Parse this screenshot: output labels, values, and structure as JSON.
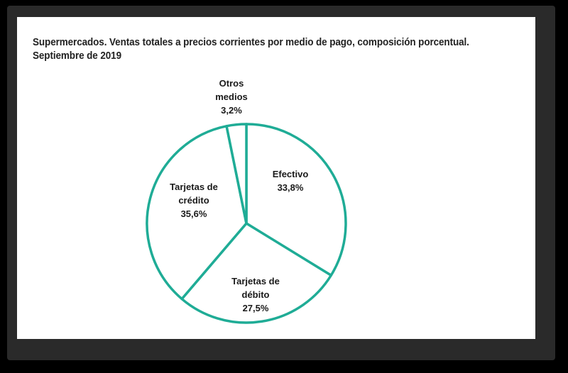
{
  "chart_data": {
    "type": "pie",
    "title": "Supermercados. Ventas totales a precios corrientes por medio de pago, composición porcentual.",
    "subtitle": "Septiembre de 2019",
    "slices": [
      {
        "label_lines": [
          "Efectivo"
        ],
        "value": 33.8,
        "value_label": "33,8%"
      },
      {
        "label_lines": [
          "Tarjetas de",
          "débito"
        ],
        "value": 27.5,
        "value_label": "27,5%"
      },
      {
        "label_lines": [
          "Tarjetas de",
          "crédito"
        ],
        "value": 35.6,
        "value_label": "35,6%"
      },
      {
        "label_lines": [
          "Otros",
          "medios"
        ],
        "value": 3.2,
        "value_label": "3,2%"
      }
    ],
    "colors": {
      "stroke": "#1fac96",
      "fill": "#ffffff"
    }
  }
}
